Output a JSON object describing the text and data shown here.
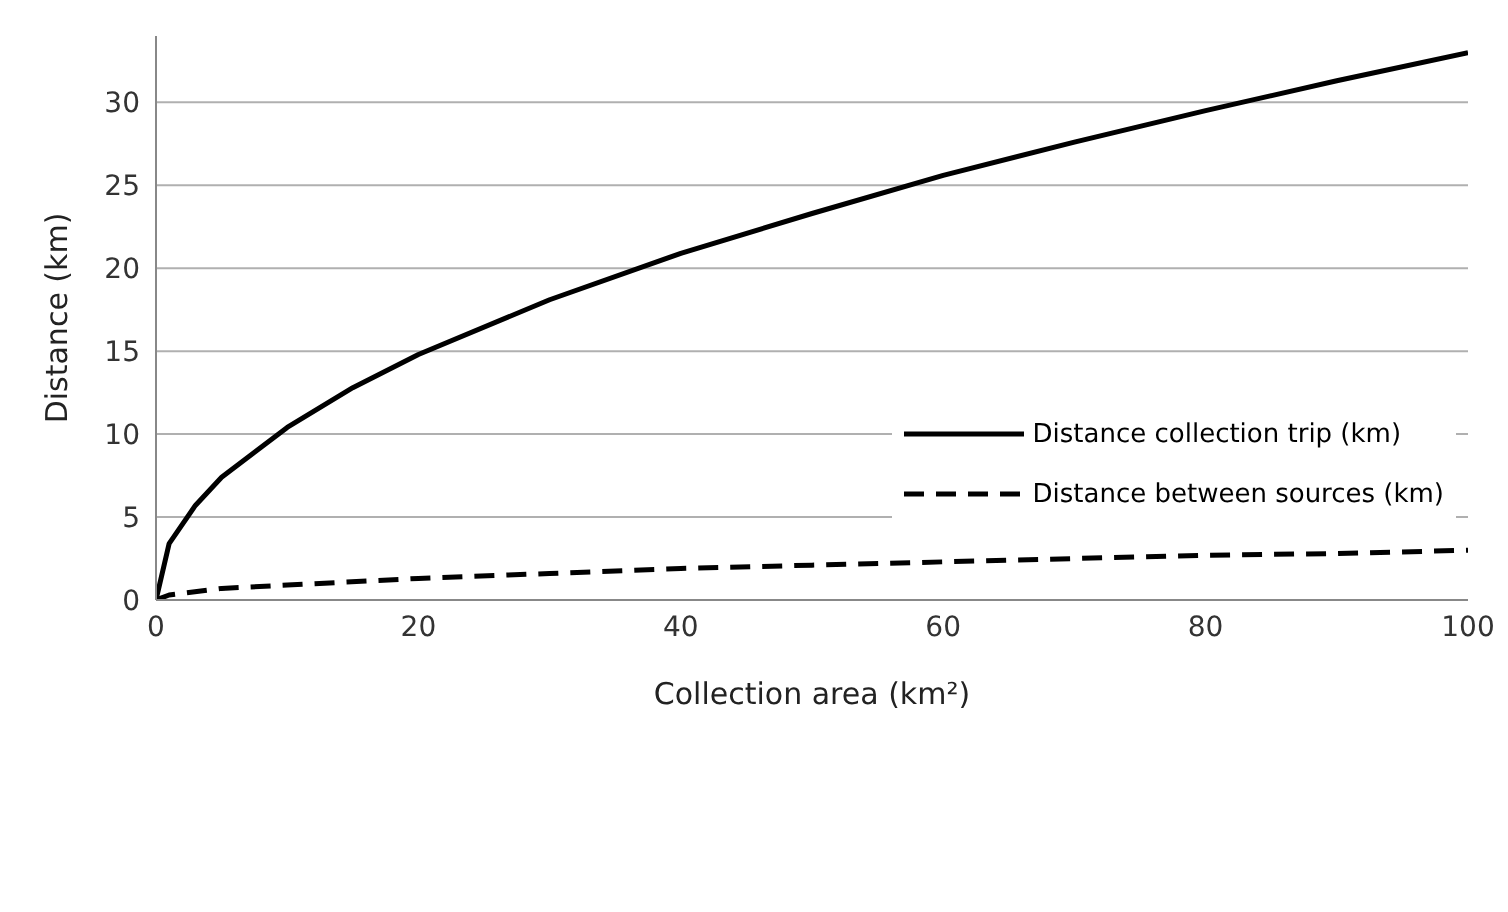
{
  "chart_data": {
    "type": "line",
    "xlabel": "Collection area (km²)",
    "ylabel": "Distance (km)",
    "xlim": [
      0,
      100
    ],
    "xticks": [
      0,
      20,
      40,
      60,
      80,
      100
    ],
    "ylim": [
      0,
      34
    ],
    "yticks": [
      0,
      5,
      10,
      15,
      20,
      25,
      30
    ],
    "grid": "y",
    "legend": "right",
    "marker": "none",
    "series": [
      {
        "name": "Distance collection trip (km)",
        "color": "#000000",
        "line_style": "solid",
        "x": [
          0,
          1,
          3,
          5,
          10,
          15,
          20,
          30,
          40,
          50,
          60,
          70,
          80,
          90,
          100
        ],
        "values": [
          0,
          3.4,
          5.7,
          7.4,
          10.4,
          12.8,
          14.8,
          18.1,
          20.9,
          23.3,
          25.6,
          27.6,
          29.5,
          31.3,
          33
        ]
      },
      {
        "name": "Distance between sources (km)",
        "color": "#000000",
        "line_style": "dashed",
        "x": [
          0,
          1,
          5,
          10,
          20,
          30,
          40,
          50,
          60,
          70,
          80,
          90,
          100
        ],
        "values": [
          0,
          0.3,
          0.7,
          0.9,
          1.3,
          1.6,
          1.9,
          2.1,
          2.3,
          2.5,
          2.7,
          2.8,
          3.0
        ]
      }
    ]
  }
}
